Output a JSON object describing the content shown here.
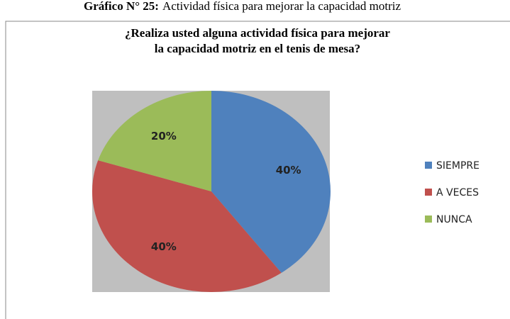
{
  "caption": {
    "label": "Gráfico N° 25:",
    "text": "Actividad física para mejorar la capacidad motriz"
  },
  "chart_data": {
    "type": "pie",
    "title": [
      "¿Realiza usted alguna actividad física para mejorar",
      "la capacidad motriz en el tenis de mesa?"
    ],
    "categories": [
      "SIEMPRE",
      "A VECES",
      "NUNCA"
    ],
    "values": [
      40,
      40,
      20
    ],
    "value_labels": [
      "40%",
      "40%",
      "20%"
    ],
    "colors": [
      "#4f81bd",
      "#c0504d",
      "#9bbb59"
    ],
    "legend": "right"
  }
}
